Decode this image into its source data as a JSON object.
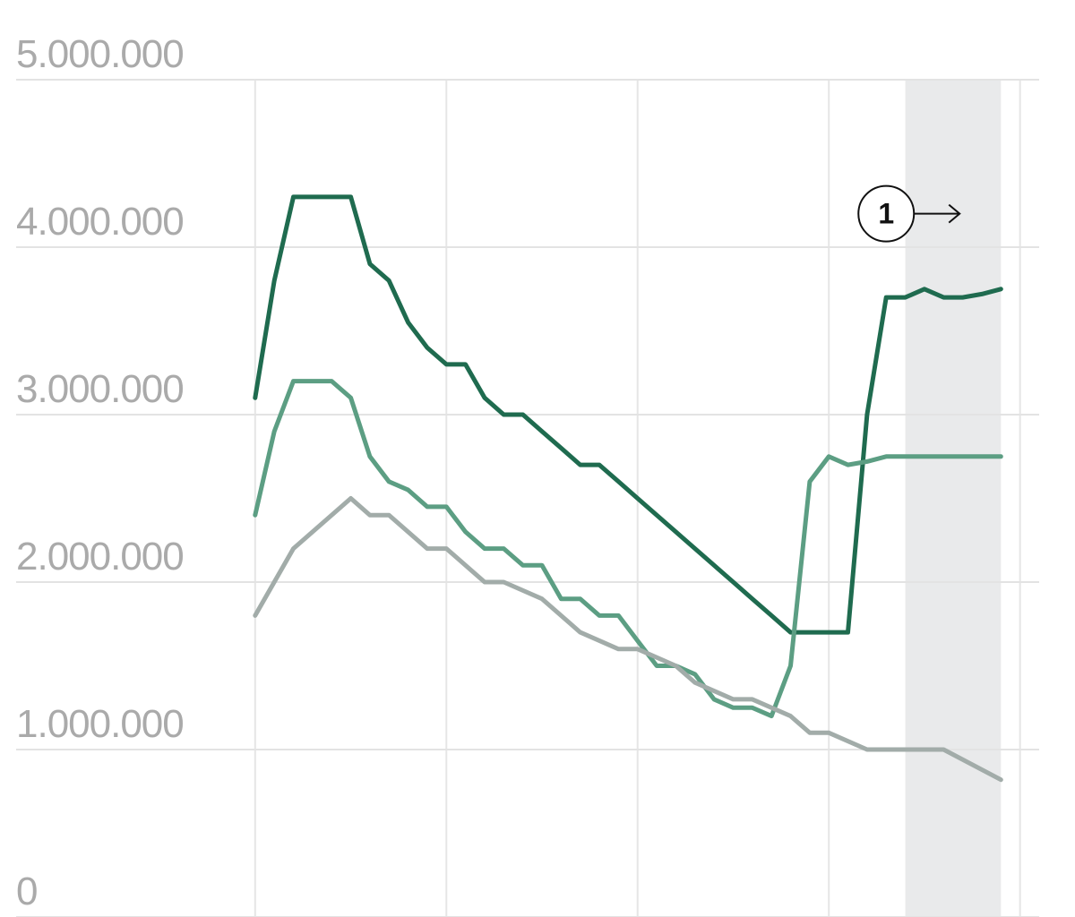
{
  "chart_data": {
    "type": "line",
    "yticks": [
      {
        "value": 0,
        "label": "0"
      },
      {
        "value": 1000000,
        "label": "1.000.000"
      },
      {
        "value": 2000000,
        "label": "2.000.000"
      },
      {
        "value": 3000000,
        "label": "3.000.000"
      },
      {
        "value": 4000000,
        "label": "4.000.000"
      },
      {
        "value": 5000000,
        "label": "5.000.000"
      }
    ],
    "ylim": [
      0,
      5000000
    ],
    "xlim": [
      -12.5,
      41
    ],
    "x_gridlines": [
      0,
      10,
      20,
      30,
      40
    ],
    "shaded_region": [
      34,
      39
    ],
    "grid": true,
    "annotation": {
      "label": "1",
      "x": 33,
      "y": 4200000,
      "arrow": "right"
    },
    "series": [
      {
        "color": "#1f6b4f",
        "x": [
          0,
          1,
          2,
          3,
          4,
          5,
          6,
          7,
          8,
          9,
          10,
          11,
          12,
          13,
          14,
          15,
          16,
          17,
          18,
          19,
          20,
          21,
          22,
          23,
          24,
          25,
          26,
          27,
          28,
          29,
          30,
          31,
          32,
          33,
          34,
          35,
          36,
          37,
          38,
          39
        ],
        "values": [
          3100000,
          3800000,
          4300000,
          4300000,
          4300000,
          4300000,
          3900000,
          3800000,
          3550000,
          3400000,
          3300000,
          3300000,
          3100000,
          3000000,
          3000000,
          2900000,
          2800000,
          2700000,
          2700000,
          2600000,
          2500000,
          2400000,
          2300000,
          2200000,
          2100000,
          2000000,
          1900000,
          1800000,
          1700000,
          1700000,
          1700000,
          1700000,
          3000000,
          3700000,
          3700000,
          3750000,
          3700000,
          3700000,
          3720000,
          3750000
        ]
      },
      {
        "color": "#5c9e83",
        "x": [
          0,
          1,
          2,
          3,
          4,
          5,
          6,
          7,
          8,
          9,
          10,
          11,
          12,
          13,
          14,
          15,
          16,
          17,
          18,
          19,
          20,
          21,
          22,
          23,
          24,
          25,
          26,
          27,
          28,
          29,
          30,
          31,
          32,
          33,
          34,
          35,
          36,
          37,
          38,
          39
        ],
        "values": [
          2400000,
          2900000,
          3200000,
          3200000,
          3200000,
          3100000,
          2750000,
          2600000,
          2550000,
          2450000,
          2450000,
          2300000,
          2200000,
          2200000,
          2100000,
          2100000,
          1900000,
          1900000,
          1800000,
          1800000,
          1650000,
          1500000,
          1500000,
          1450000,
          1300000,
          1250000,
          1250000,
          1200000,
          1500000,
          2600000,
          2750000,
          2700000,
          2720000,
          2750000,
          2750000,
          2750000,
          2750000,
          2750000,
          2750000,
          2750000
        ]
      },
      {
        "color": "#a2aca9",
        "x": [
          0,
          2,
          5,
          6,
          7,
          9,
          10,
          12,
          13,
          15,
          17,
          19,
          20,
          22,
          23,
          25,
          26,
          28,
          29,
          30,
          32,
          34,
          36,
          39
        ],
        "values": [
          1800000,
          2200000,
          2500000,
          2400000,
          2400000,
          2200000,
          2200000,
          2000000,
          2000000,
          1900000,
          1700000,
          1600000,
          1600000,
          1500000,
          1400000,
          1300000,
          1300000,
          1200000,
          1100000,
          1100000,
          1000000,
          1000000,
          1000000,
          820000
        ]
      }
    ]
  }
}
